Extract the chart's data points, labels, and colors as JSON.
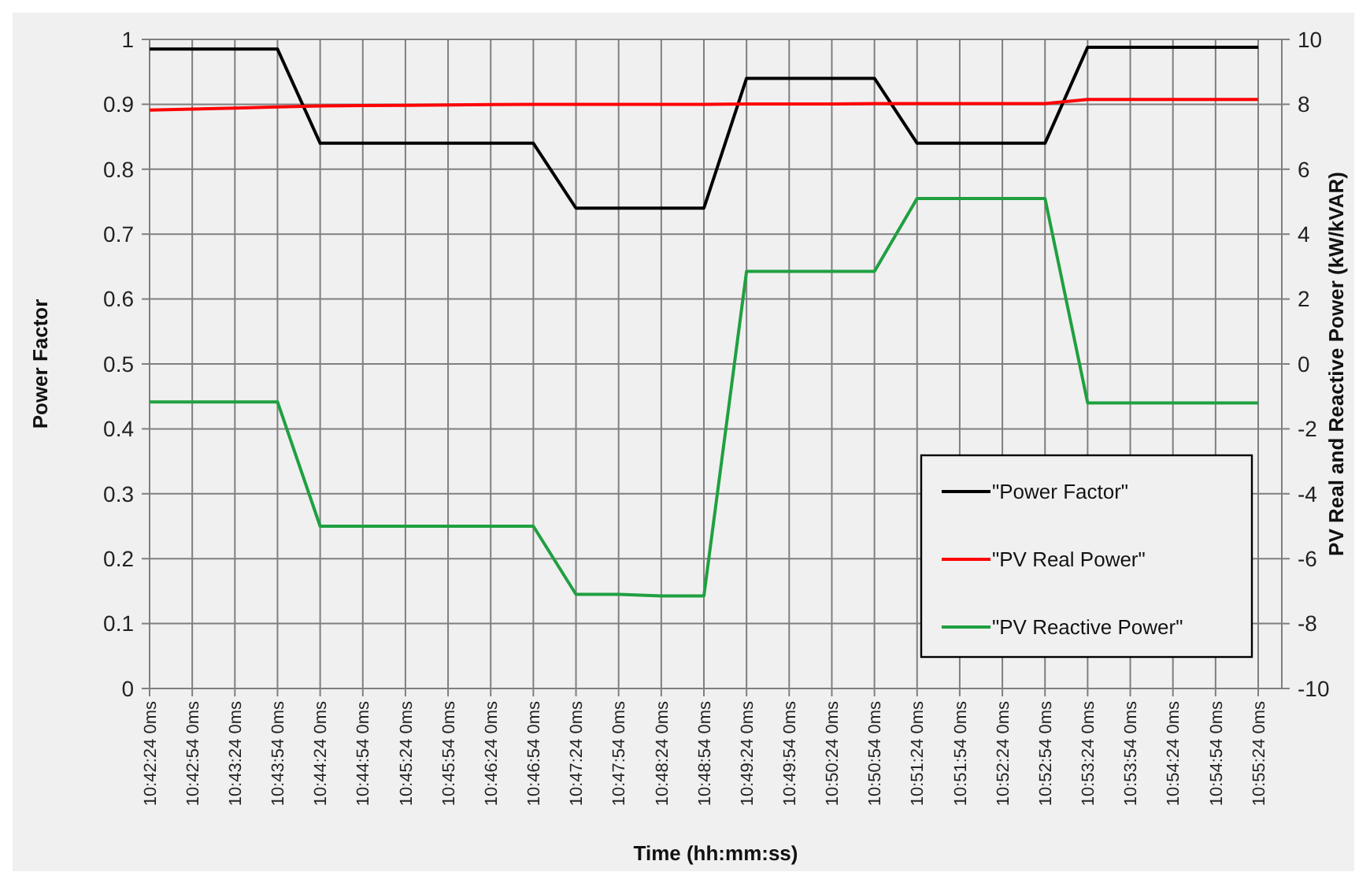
{
  "chart_data": {
    "type": "line",
    "xlabel": "Time (hh:mm:ss)",
    "ylabel": "Power Factor",
    "y2label": "PV Real and Reactive  Power (kW/kVAR)",
    "categories": [
      "10:42:24 0ms",
      "10:42:54 0ms",
      "10:43:24 0ms",
      "10:43:54 0ms",
      "10:44:24 0ms",
      "10:44:54 0ms",
      "10:45:24 0ms",
      "10:45:54 0ms",
      "10:46:24 0ms",
      "10:46:54 0ms",
      "10:47:24 0ms",
      "10:47:54 0ms",
      "10:48:24 0ms",
      "10:48:54 0ms",
      "10:49:24 0ms",
      "10:49:54 0ms",
      "10:50:24 0ms",
      "10:50:54 0ms",
      "10:51:24 0ms",
      "10:51:54 0ms",
      "10:52:24 0ms",
      "10:52:54 0ms",
      "10:53:24 0ms",
      "10:53:54 0ms",
      "10:54:24 0ms",
      "10:54:54 0ms",
      "10:55:24 0ms"
    ],
    "ylim": [
      0,
      1
    ],
    "yticks": [
      0,
      0.1,
      0.2,
      0.3,
      0.4,
      0.5,
      0.6,
      0.7,
      0.8,
      0.9,
      1
    ],
    "y2lim": [
      -10,
      10
    ],
    "y2ticks": [
      -10,
      -8,
      -6,
      -4,
      -2,
      0,
      2,
      4,
      6,
      8,
      10
    ],
    "grid": true,
    "legend": "bottom right",
    "line_style": "solid",
    "series": [
      {
        "name": "\"Power Factor\"",
        "color": "#000000",
        "values": [
          0.985,
          0.985,
          0.985,
          0.985,
          0.84,
          0.84,
          0.84,
          0.84,
          0.84,
          0.84,
          0.74,
          0.74,
          0.74,
          0.74,
          0.94,
          0.94,
          0.94,
          0.94,
          0.84,
          0.84,
          0.84,
          0.84,
          0.988,
          0.988,
          0.988,
          0.988,
          0.988
        ]
      },
      {
        "name": "\"PV Real Power\"",
        "color": "#ff0000",
        "axis": "y2",
        "values": [
          7.82,
          7.85,
          7.88,
          7.92,
          7.95,
          7.96,
          7.97,
          7.98,
          7.99,
          8.0,
          8.0,
          8.0,
          8.0,
          8.0,
          8.01,
          8.01,
          8.01,
          8.02,
          8.02,
          8.02,
          8.02,
          8.02,
          8.15,
          8.15,
          8.15,
          8.15,
          8.15
        ]
      },
      {
        "name": "\"PV Reactive Power\"",
        "color": "#1fa040",
        "axis": "y2",
        "values": [
          -1.17,
          -1.17,
          -1.17,
          -1.17,
          -5.0,
          -5.0,
          -5.0,
          -5.0,
          -5.0,
          -5.0,
          -7.1,
          -7.1,
          -7.15,
          -7.15,
          2.85,
          2.85,
          2.85,
          2.85,
          5.1,
          5.1,
          5.1,
          5.1,
          -1.2,
          -1.2,
          -1.2,
          -1.2,
          -1.2
        ]
      }
    ]
  }
}
